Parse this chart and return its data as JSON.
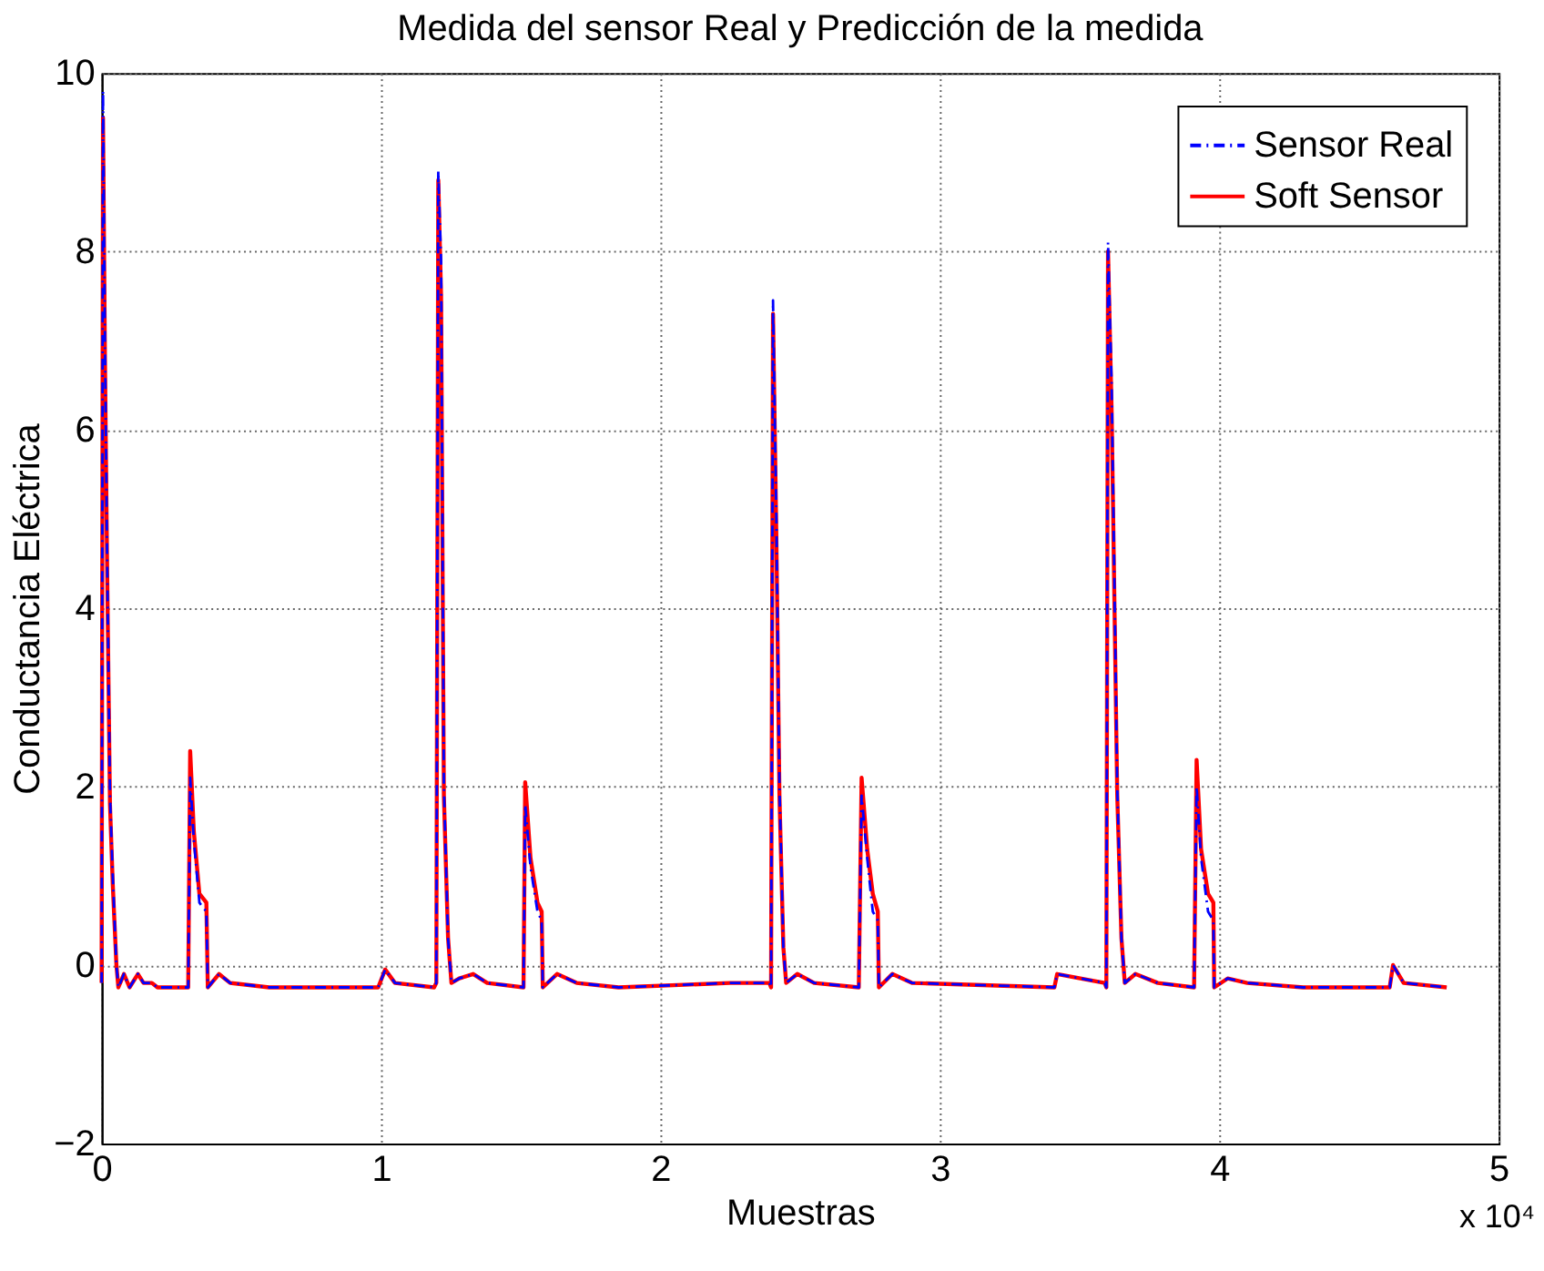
{
  "chart_data": {
    "type": "line",
    "title": "Medida del sensor Real y Predicción de la medida",
    "xlabel": "Muestras",
    "ylabel": "Conductancia Eléctrica",
    "x": [
      0,
      0.005,
      0.012,
      0.02,
      0.03,
      0.04,
      0.053,
      0.06,
      0.08,
      0.1,
      0.13,
      0.15,
      0.18,
      0.2,
      0.31,
      0.317,
      0.33,
      0.35,
      0.375,
      0.38,
      0.42,
      0.46,
      0.6,
      0.99,
      1.015,
      1.05,
      1.19,
      1.198,
      1.205,
      1.215,
      1.225,
      1.24,
      1.252,
      1.28,
      1.33,
      1.38,
      1.51,
      1.516,
      1.535,
      1.56,
      1.575,
      1.579,
      1.63,
      1.7,
      1.85,
      2.25,
      2.39,
      2.396,
      2.403,
      2.415,
      2.426,
      2.44,
      2.45,
      2.49,
      2.55,
      2.71,
      2.72,
      2.74,
      2.76,
      2.778,
      2.782,
      2.83,
      2.9,
      3.41,
      3.42,
      3.59,
      3.596,
      3.602,
      3.615,
      3.635,
      3.65,
      3.662,
      3.7,
      3.78,
      3.91,
      3.919,
      3.935,
      3.96,
      3.979,
      3.982,
      4.03,
      4.1,
      4.3,
      4.61,
      4.622,
      4.66,
      4.814
    ],
    "series": [
      {
        "name": "Sensor Real",
        "color": "#0000ff",
        "line_style": "dashed",
        "values": [
          -0.2,
          9.8,
          7.0,
          4.5,
          1.9,
          1.0,
          0.0,
          -0.25,
          -0.1,
          -0.25,
          -0.1,
          -0.2,
          -0.2,
          -0.25,
          -0.25,
          2.1,
          1.4,
          0.7,
          0.6,
          -0.25,
          -0.1,
          -0.2,
          -0.25,
          -0.25,
          -0.05,
          -0.2,
          -0.25,
          -0.2,
          8.9,
          7.9,
          2.0,
          0.3,
          -0.2,
          -0.15,
          -0.1,
          -0.2,
          -0.25,
          1.8,
          1.1,
          0.6,
          0.5,
          -0.25,
          -0.1,
          -0.2,
          -0.25,
          -0.2,
          -0.2,
          -0.25,
          7.45,
          5.0,
          2.0,
          0.2,
          -0.2,
          -0.1,
          -0.2,
          -0.25,
          1.9,
          1.2,
          0.6,
          0.5,
          -0.25,
          -0.1,
          -0.2,
          -0.25,
          -0.1,
          -0.2,
          -0.25,
          8.1,
          6.5,
          2.0,
          0.3,
          -0.2,
          -0.1,
          -0.2,
          -0.25,
          2.0,
          1.2,
          0.6,
          0.5,
          -0.25,
          -0.15,
          -0.2,
          -0.25,
          -0.25,
          0.0,
          -0.2,
          -0.25
        ]
      },
      {
        "name": "Soft Sensor",
        "color": "#ff0000",
        "line_style": "solid",
        "values": [
          -0.2,
          9.5,
          6.8,
          4.4,
          1.8,
          0.9,
          0.0,
          -0.25,
          -0.1,
          -0.25,
          -0.1,
          -0.2,
          -0.2,
          -0.25,
          -0.25,
          2.4,
          1.5,
          0.8,
          0.7,
          -0.25,
          -0.1,
          -0.2,
          -0.25,
          -0.25,
          -0.05,
          -0.2,
          -0.25,
          -0.2,
          8.8,
          7.5,
          1.9,
          0.3,
          -0.2,
          -0.15,
          -0.1,
          -0.2,
          -0.25,
          2.05,
          1.2,
          0.7,
          0.6,
          -0.25,
          -0.1,
          -0.2,
          -0.25,
          -0.2,
          -0.2,
          -0.25,
          7.3,
          4.8,
          1.9,
          0.2,
          -0.2,
          -0.1,
          -0.2,
          -0.25,
          2.1,
          1.3,
          0.8,
          0.6,
          -0.25,
          -0.1,
          -0.2,
          -0.25,
          -0.1,
          -0.2,
          -0.25,
          8.0,
          6.2,
          1.9,
          0.3,
          -0.2,
          -0.1,
          -0.2,
          -0.25,
          2.3,
          1.3,
          0.8,
          0.7,
          -0.25,
          -0.15,
          -0.2,
          -0.25,
          -0.25,
          0.0,
          -0.2,
          -0.25
        ]
      }
    ],
    "xlim": [
      0,
      5
    ],
    "xticks": [
      0,
      1,
      2,
      3,
      4,
      5
    ],
    "ylim": [
      -2,
      10
    ],
    "yticks": [
      -2,
      0,
      2,
      4,
      6,
      8,
      10
    ],
    "annotations": [
      "x 10⁴"
    ],
    "grid": true,
    "legend": "top right",
    "marker": "none"
  }
}
